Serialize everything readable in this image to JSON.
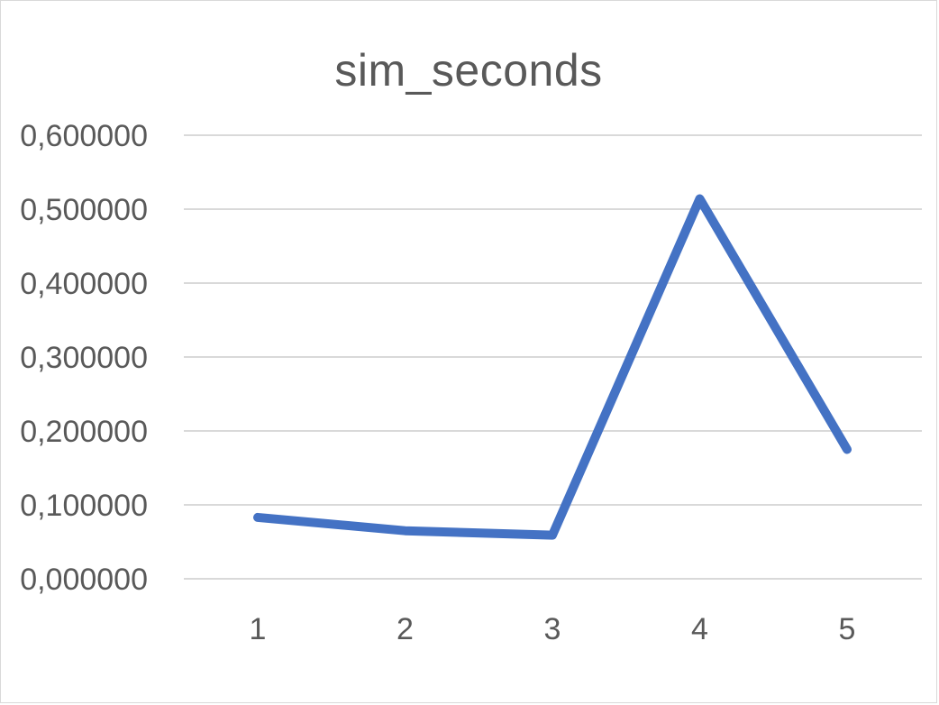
{
  "chart_data": {
    "type": "line",
    "title": "sim_seconds",
    "categories": [
      "1",
      "2",
      "3",
      "4",
      "5"
    ],
    "series": [
      {
        "values": [
          0.083,
          0.065,
          0.059,
          0.514,
          0.175
        ],
        "color": "#4472C4"
      }
    ],
    "ylim": [
      0,
      0.6
    ],
    "yticks": [
      "0,000000",
      "0,100000",
      "0,200000",
      "0,300000",
      "0,400000",
      "0,500000",
      "0,600000"
    ],
    "xlabel": "",
    "ylabel": "",
    "grid": true,
    "legend": "none",
    "gridline_color": "#d9d9d9"
  }
}
